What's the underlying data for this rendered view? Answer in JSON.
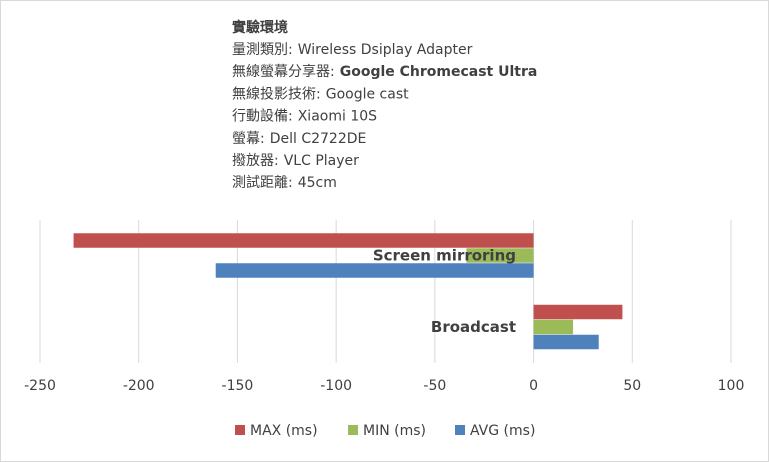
{
  "info": {
    "title": "實驗環境",
    "lines": [
      {
        "label": "量測類別:",
        "value": "Wireless Dsiplay Adapter"
      },
      {
        "label": "無線螢幕分享器:",
        "value": "Google Chromecast Ultra",
        "bold": true
      },
      {
        "label": "無線投影技術:",
        "value": "Google cast"
      },
      {
        "label": "行動設備:",
        "value": "Xiaomi 10S"
      },
      {
        "label": "螢幕:",
        "value": "Dell C2722DE"
      },
      {
        "label": "撥放器:",
        "value": "VLC Player"
      },
      {
        "label": "測試距離:",
        "value": "45cm"
      }
    ]
  },
  "chart_data": {
    "type": "hbar",
    "categories": [
      "Screen mirroring",
      "Broadcast"
    ],
    "series": [
      {
        "name": "MAX (ms)",
        "color": "#c0504d",
        "values": [
          -233,
          45
        ]
      },
      {
        "name": "MIN (ms)",
        "color": "#9bbb59",
        "values": [
          -34,
          20
        ]
      },
      {
        "name": "AVG (ms)",
        "color": "#4f81bd",
        "values": [
          -161,
          33
        ]
      }
    ],
    "xlim": [
      -250,
      100
    ],
    "xticks": [
      -250,
      -200,
      -150,
      -100,
      -50,
      0,
      50,
      100
    ],
    "grid": true,
    "legend": "bottom"
  }
}
